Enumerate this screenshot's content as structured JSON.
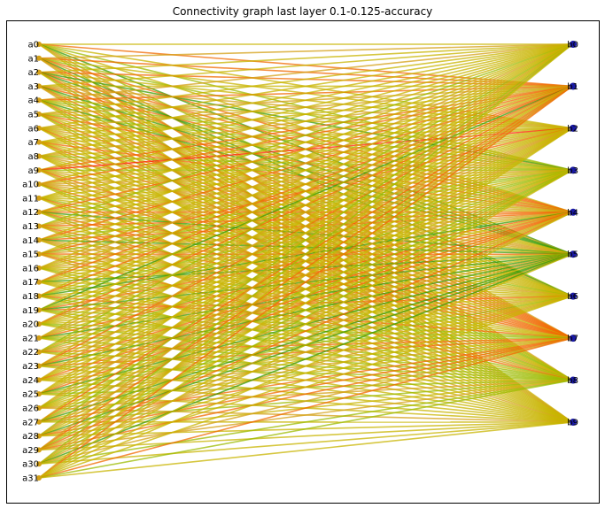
{
  "title": "Connectivity graph last layer 0.1-0.125-accuracy",
  "left_nodes": [
    "a0",
    "a1",
    "a2",
    "a3",
    "a4",
    "a5",
    "a6",
    "a7",
    "a8",
    "a9",
    "a10",
    "a11",
    "a12",
    "a13",
    "a14",
    "a15",
    "a16",
    "a17",
    "a18",
    "a19",
    "a20",
    "a21",
    "a22",
    "a23",
    "a24",
    "a25",
    "a26",
    "a27",
    "a28",
    "a29",
    "a30",
    "a31"
  ],
  "right_nodes": [
    "b0",
    "b1",
    "b2",
    "b3",
    "b4",
    "b5",
    "b6",
    "b7",
    "b8",
    "b9"
  ],
  "colors": {
    "red": "#ff2200",
    "orange": "#f06a00",
    "amber": "#d4a017",
    "yellow": "#c8b400",
    "yellowgreen": "#9cbb00",
    "green": "#3a9a00",
    "node_left": "#d4a017",
    "node_right": "#1a1aa6"
  },
  "edges": "every left node a0–a31 is connected to every right node b0–b9"
}
